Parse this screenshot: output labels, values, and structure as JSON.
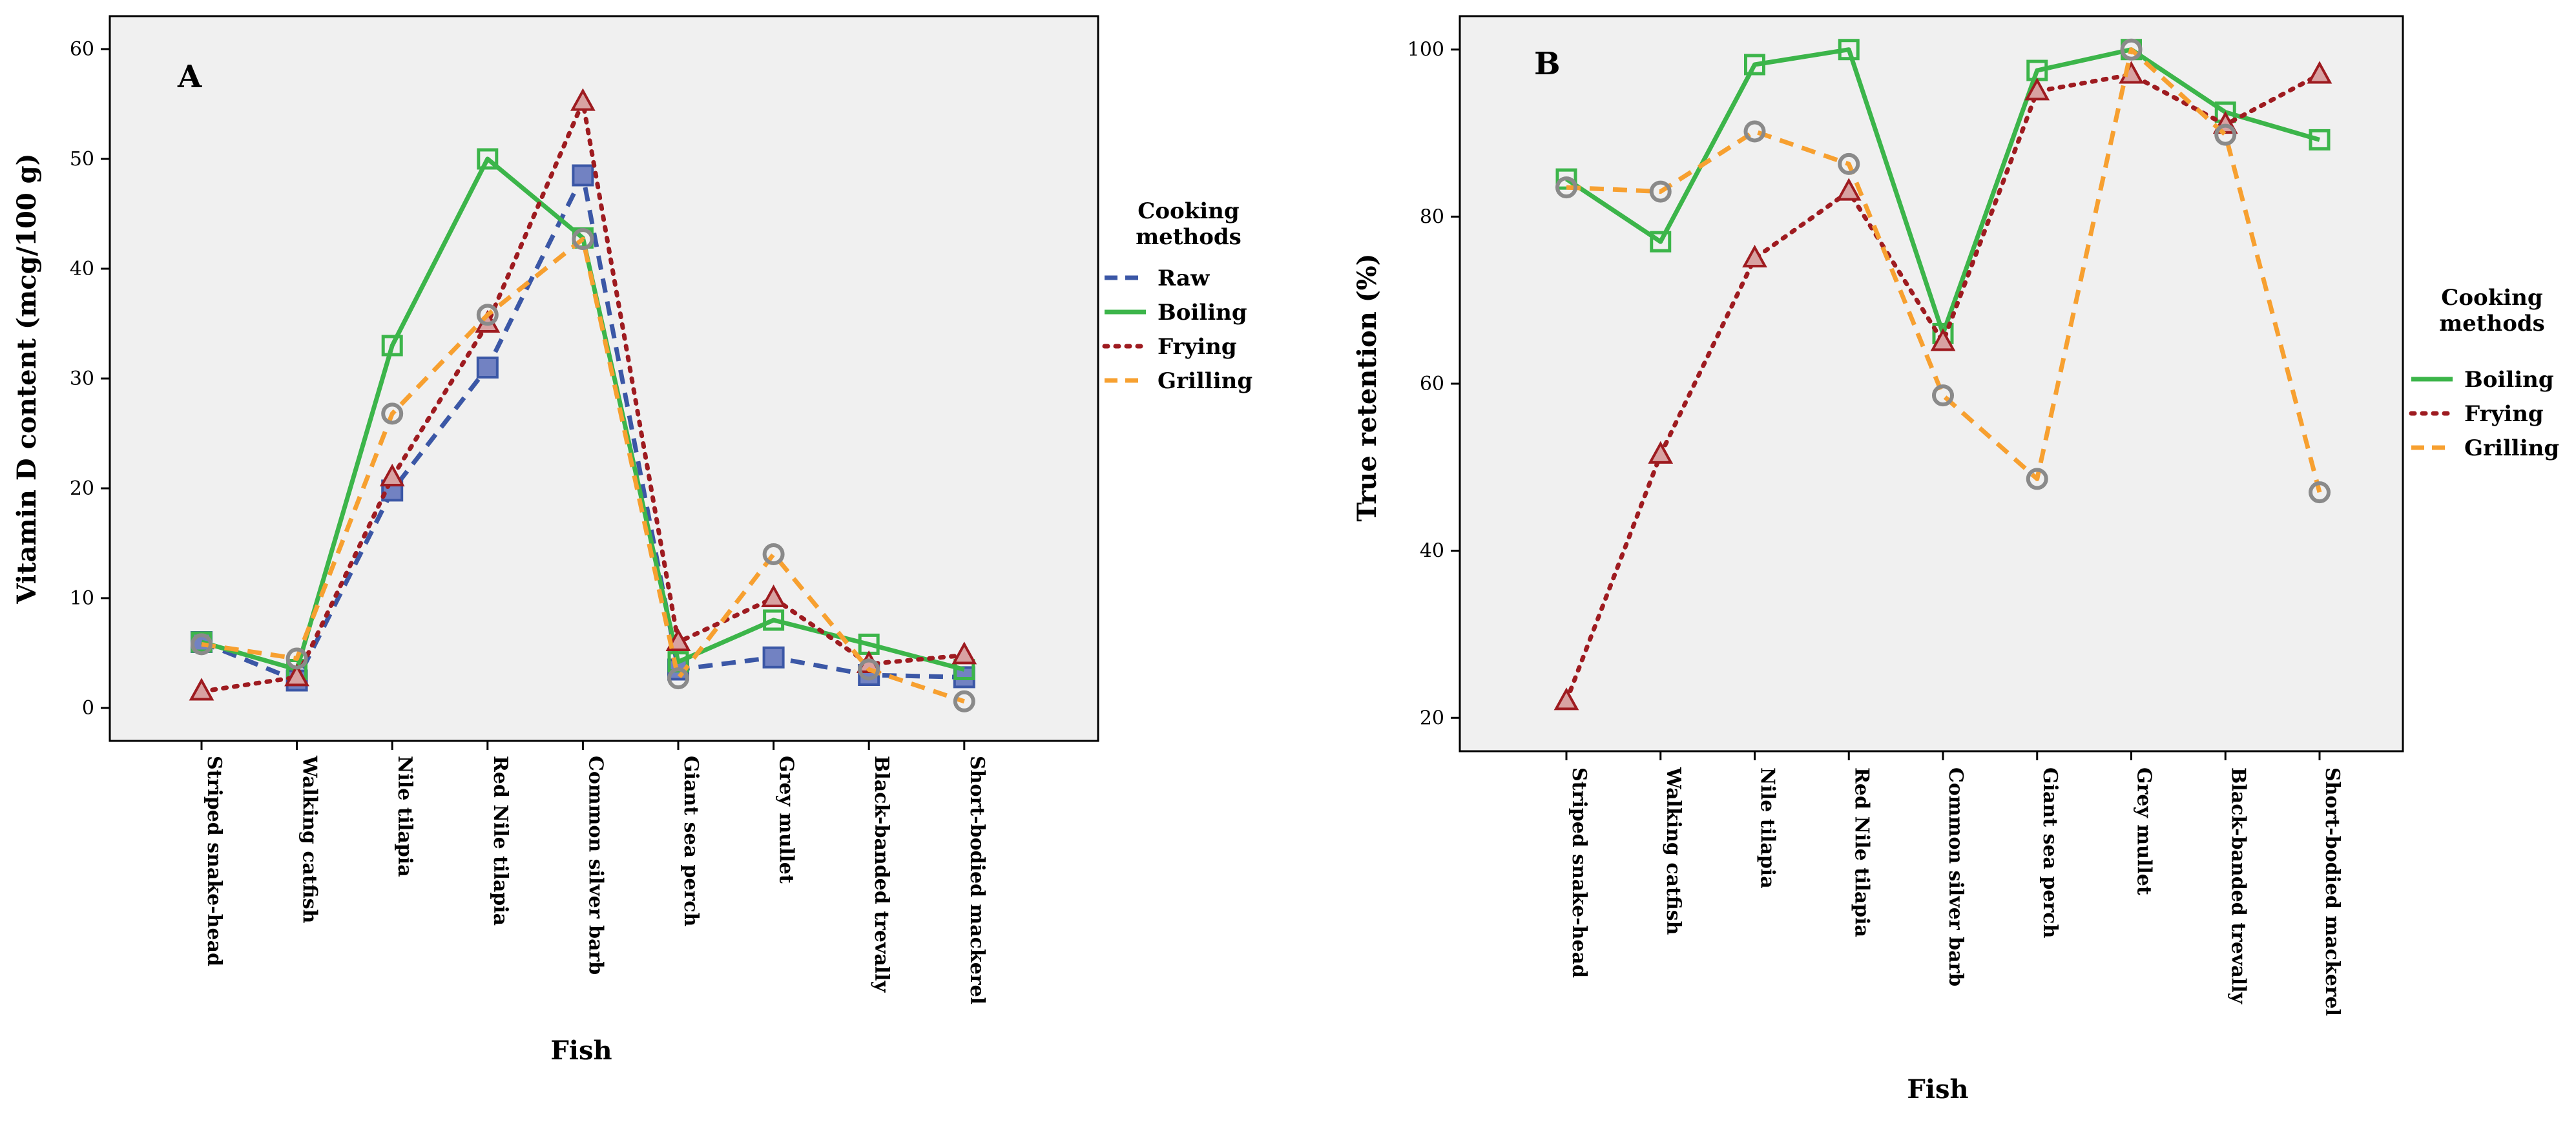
{
  "figure": {
    "panels": [
      {
        "id": "A",
        "letter": "A",
        "legend_title_lines": [
          "Cooking",
          "methods"
        ]
      },
      {
        "id": "B",
        "letter": "B",
        "legend_title_lines": [
          "Cooking",
          "methods"
        ]
      }
    ]
  },
  "chart_data": [
    {
      "type": "line",
      "title": "A",
      "xlabel": "Fish",
      "ylabel": "Vitamin D content (mcg/100 g)",
      "ylim": [
        -3,
        63
      ],
      "yticks": [
        0,
        10,
        20,
        30,
        40,
        50,
        60
      ],
      "grid": false,
      "legend": "right",
      "categories": [
        "Striped snake-head",
        "Walking catfish",
        "Nile tilapia",
        "Red Nile tilapia",
        "Common silver barb",
        "Giant sea perch",
        "Grey mullet",
        "Black-banded trevally",
        "Short-bodied mackerel"
      ],
      "series": [
        {
          "name": "Raw",
          "color": "#3b57a6",
          "dash": "dashed",
          "marker": "square-filled",
          "values": [
            6.0,
            2.5,
            19.8,
            31.0,
            48.5,
            3.5,
            4.6,
            3.0,
            2.8
          ]
        },
        {
          "name": "Boiling",
          "color": "#3cb54a",
          "dash": "solid",
          "marker": "square-open",
          "values": [
            6.0,
            3.5,
            33.0,
            50.0,
            42.8,
            4.2,
            8.0,
            5.8,
            3.5
          ]
        },
        {
          "name": "Frying",
          "color": "#9e1b20",
          "dash": "dotted",
          "marker": "triangle",
          "values": [
            1.5,
            2.8,
            21.0,
            35.0,
            55.2,
            6.0,
            10.0,
            4.0,
            4.8
          ]
        },
        {
          "name": "Grilling",
          "color": "#f7a030",
          "dash": "dashed",
          "marker": "circle",
          "values": [
            5.8,
            4.5,
            26.8,
            35.8,
            42.7,
            2.7,
            14.0,
            3.5,
            0.6
          ]
        }
      ]
    },
    {
      "type": "line",
      "title": "B",
      "xlabel": "Fish",
      "ylabel": "True retention (%)",
      "ylim": [
        16,
        104
      ],
      "yticks": [
        20,
        40,
        60,
        80,
        100
      ],
      "grid": false,
      "legend": "right",
      "categories": [
        "Striped snake-head",
        "Walking catfish",
        "Nile tilapia",
        "Red Nile tilapia",
        "Common silver barb",
        "Giant sea perch",
        "Grey mullet",
        "Black-banded trevally",
        "Short-bodied mackerel"
      ],
      "series": [
        {
          "name": "Boiling",
          "color": "#3cb54a",
          "dash": "solid",
          "marker": "square-open",
          "values": [
            84.5,
            77.0,
            98.2,
            100.0,
            66.0,
            97.5,
            100.0,
            92.5,
            89.2
          ]
        },
        {
          "name": "Frying",
          "color": "#9e1b20",
          "dash": "dotted",
          "marker": "triangle",
          "values": [
            22.0,
            51.5,
            75.0,
            83.0,
            65.0,
            95.0,
            97.0,
            91.0,
            97.0
          ]
        },
        {
          "name": "Grilling",
          "color": "#f7a030",
          "dash": "dashed",
          "marker": "circle",
          "values": [
            83.5,
            83.0,
            90.2,
            86.3,
            58.6,
            48.6,
            100.0,
            89.8,
            47.0
          ]
        }
      ]
    }
  ]
}
